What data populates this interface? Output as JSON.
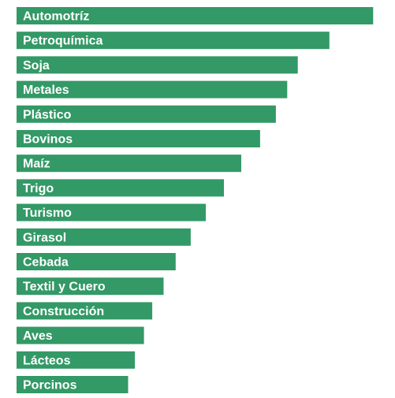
{
  "chart_data": {
    "type": "bar",
    "orientation": "horizontal",
    "labels_inside_bars": true,
    "bar_color": "#339966",
    "label_color": "#ffffff",
    "categories": [
      "Automotríz",
      "Petroquímica",
      "Soja",
      "Metales",
      "Plástico",
      "Bovinos",
      "Maíz",
      "Trigo",
      "Turismo",
      "Girasol",
      "Cebada",
      "Textil y Cuero",
      "Construcción",
      "Aves",
      "Lácteos",
      "Porcinos"
    ],
    "values": [
      473,
      415,
      373,
      359,
      344,
      323,
      298,
      275,
      251,
      231,
      211,
      195,
      180,
      169,
      157,
      148
    ],
    "xlim": [
      0,
      480
    ],
    "grid": false,
    "legend": false
  }
}
